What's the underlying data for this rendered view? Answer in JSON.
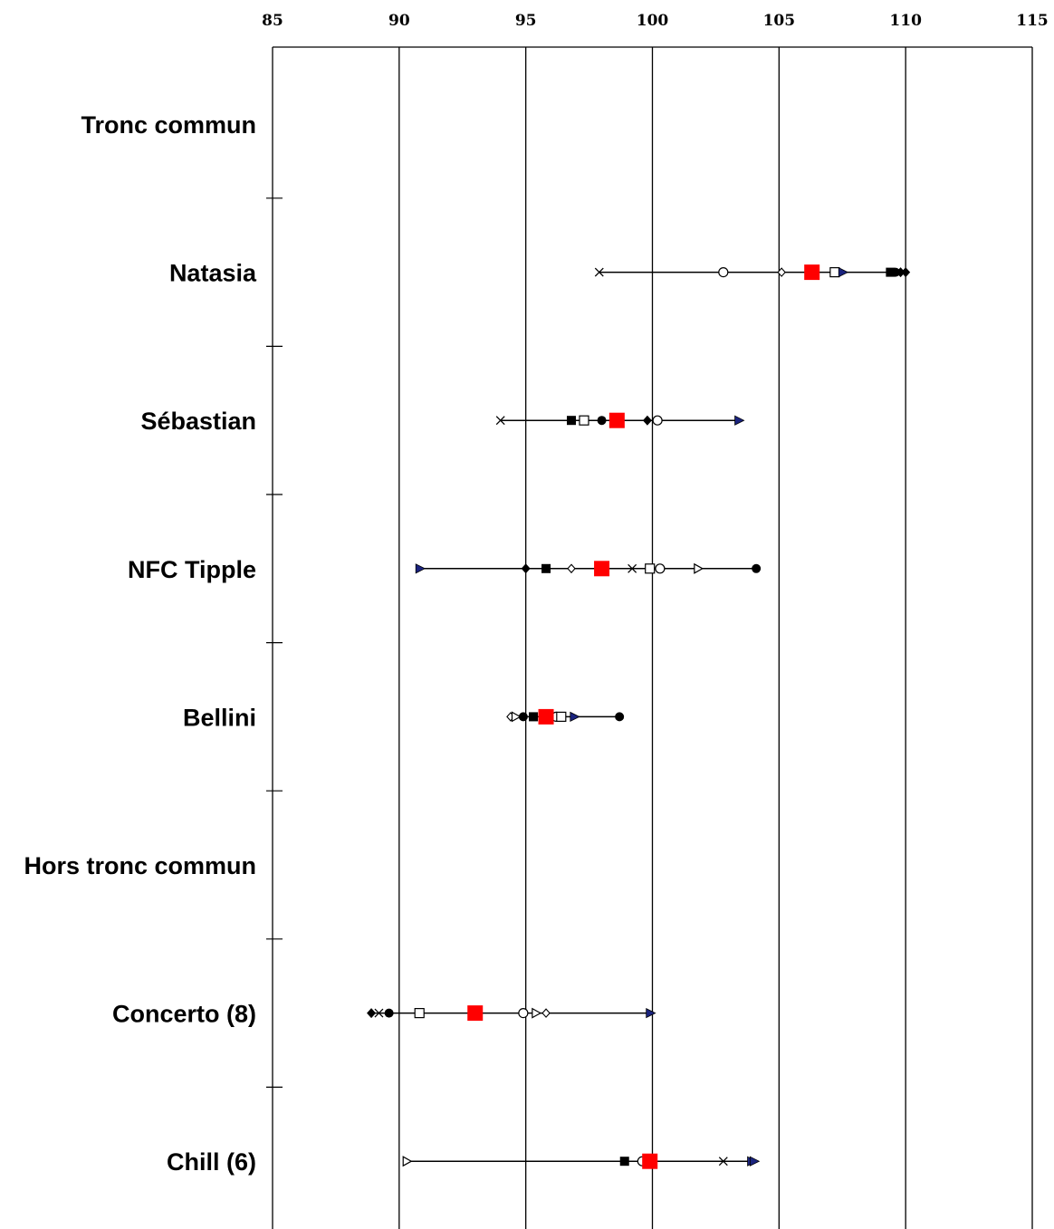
{
  "chart_data": {
    "type": "scatter",
    "title": "",
    "xlabel": "",
    "ylabel": "",
    "xlim": [
      85,
      115
    ],
    "xticks": [
      85,
      90,
      95,
      100,
      105,
      110,
      115
    ],
    "x_axis_position": "top",
    "grid": "vertical",
    "legend": "none",
    "highlight_color": "#ff0000",
    "line_color": "#000000",
    "rows": [
      {
        "label": "Tronc commun",
        "points": []
      },
      {
        "label": "Natasia",
        "points": [
          {
            "x": 97.9,
            "marker": "x"
          },
          {
            "x": 102.8,
            "marker": "circle-open"
          },
          {
            "x": 105.1,
            "marker": "diamond-open"
          },
          {
            "x": 106.3,
            "marker": "square-red"
          },
          {
            "x": 107.2,
            "marker": "square-open"
          },
          {
            "x": 107.5,
            "marker": "triangle-filled"
          },
          {
            "x": 109.4,
            "marker": "square-filled"
          },
          {
            "x": 109.6,
            "marker": "circle-filled"
          },
          {
            "x": 109.8,
            "marker": "diamond-filled"
          },
          {
            "x": 110.0,
            "marker": "diamond-filled"
          }
        ]
      },
      {
        "label": "Sébastian",
        "points": [
          {
            "x": 94.0,
            "marker": "x"
          },
          {
            "x": 96.8,
            "marker": "square-filled"
          },
          {
            "x": 97.3,
            "marker": "square-open"
          },
          {
            "x": 98.0,
            "marker": "circle-filled"
          },
          {
            "x": 98.6,
            "marker": "square-red"
          },
          {
            "x": 99.8,
            "marker": "diamond-filled"
          },
          {
            "x": 100.2,
            "marker": "circle-open"
          },
          {
            "x": 103.4,
            "marker": "triangle-filled"
          }
        ]
      },
      {
        "label": "NFC Tipple",
        "points": [
          {
            "x": 90.8,
            "marker": "triangle-filled"
          },
          {
            "x": 95.0,
            "marker": "diamond-filled"
          },
          {
            "x": 95.8,
            "marker": "square-filled"
          },
          {
            "x": 96.8,
            "marker": "diamond-open"
          },
          {
            "x": 98.0,
            "marker": "square-red"
          },
          {
            "x": 99.2,
            "marker": "x"
          },
          {
            "x": 99.9,
            "marker": "square-open"
          },
          {
            "x": 100.3,
            "marker": "circle-open"
          },
          {
            "x": 101.8,
            "marker": "triangle-open"
          },
          {
            "x": 104.1,
            "marker": "circle-filled"
          }
        ]
      },
      {
        "label": "Bellini",
        "points": [
          {
            "x": 94.4,
            "marker": "diamond-open"
          },
          {
            "x": 94.6,
            "marker": "triangle-open"
          },
          {
            "x": 94.9,
            "marker": "circle-filled"
          },
          {
            "x": 95.3,
            "marker": "square-filled"
          },
          {
            "x": 95.8,
            "marker": "square-red"
          },
          {
            "x": 96.2,
            "marker": "circle-open"
          },
          {
            "x": 96.4,
            "marker": "square-open"
          },
          {
            "x": 96.9,
            "marker": "triangle-filled"
          },
          {
            "x": 98.7,
            "marker": "circle-filled"
          }
        ]
      },
      {
        "label": "Hors tronc commun",
        "points": []
      },
      {
        "label": "Concerto (8)",
        "points": [
          {
            "x": 88.9,
            "marker": "diamond-filled"
          },
          {
            "x": 89.2,
            "marker": "x"
          },
          {
            "x": 89.6,
            "marker": "circle-filled"
          },
          {
            "x": 90.8,
            "marker": "square-open"
          },
          {
            "x": 93.0,
            "marker": "square-red"
          },
          {
            "x": 94.9,
            "marker": "circle-open"
          },
          {
            "x": 95.4,
            "marker": "triangle-open"
          },
          {
            "x": 95.8,
            "marker": "diamond-open"
          },
          {
            "x": 99.9,
            "marker": "triangle-filled"
          }
        ]
      },
      {
        "label": "Chill (6)",
        "points": [
          {
            "x": 90.3,
            "marker": "triangle-open"
          },
          {
            "x": 98.9,
            "marker": "square-filled"
          },
          {
            "x": 99.6,
            "marker": "circle-open"
          },
          {
            "x": 99.9,
            "marker": "square-red"
          },
          {
            "x": 102.8,
            "marker": "x"
          },
          {
            "x": 103.9,
            "marker": "triangle-filled"
          },
          {
            "x": 104.0,
            "marker": "triangle-filled"
          }
        ]
      }
    ]
  }
}
